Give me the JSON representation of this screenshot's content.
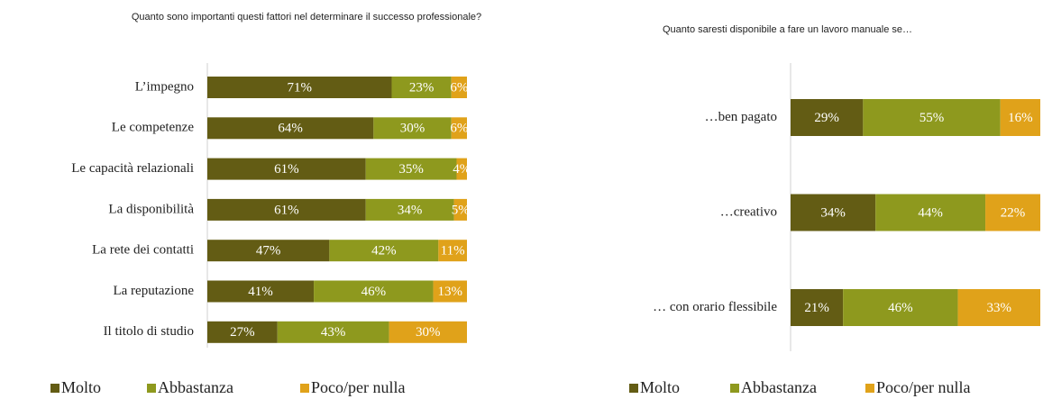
{
  "chart_data": [
    {
      "type": "bar",
      "orientation": "horizontal",
      "stacked": true,
      "title": "Quanto sono importanti questi fattori nel determinare il successo professionale?",
      "categories": [
        "L’impegno",
        "Le competenze",
        "Le capacità relazionali",
        "La disponibilità",
        "La rete dei contatti",
        "La reputazione",
        "Il titolo di studio"
      ],
      "xlim": [
        0,
        100
      ],
      "series": [
        {
          "name": "Molto",
          "color": "#635c14",
          "values": [
            71,
            64,
            61,
            61,
            47,
            41,
            27
          ],
          "value_labels": [
            "71%",
            "64%",
            "61%",
            "61%",
            "47%",
            "41%",
            "27%"
          ]
        },
        {
          "name": "Abbastanza",
          "color": "#8e991e",
          "values": [
            23,
            30,
            35,
            34,
            42,
            46,
            43
          ],
          "value_labels": [
            "23%",
            "30%",
            "35%",
            "34%",
            "42%",
            "46%",
            "43%"
          ]
        },
        {
          "name": "Poco/per nulla",
          "color": "#e0a21a",
          "values": [
            6,
            6,
            4,
            5,
            11,
            13,
            30
          ],
          "value_labels": [
            "6%",
            "6%",
            "4%",
            "5%",
            "11%",
            "13%",
            "30%"
          ]
        }
      ]
    },
    {
      "type": "bar",
      "orientation": "horizontal",
      "stacked": true,
      "title": "Quanto saresti disponibile a fare un lavoro manuale se…",
      "categories": [
        "…ben pagato",
        "…creativo",
        "… con orario flessibile"
      ],
      "xlim": [
        0,
        100
      ],
      "series": [
        {
          "name": "Molto",
          "color": "#635c14",
          "values": [
            29,
            34,
            21
          ],
          "value_labels": [
            "29%",
            "34%",
            "21%"
          ]
        },
        {
          "name": "Abbastanza",
          "color": "#8e991e",
          "values": [
            55,
            44,
            46
          ],
          "value_labels": [
            "55%",
            "44%",
            "46%"
          ]
        },
        {
          "name": "Poco/per nulla",
          "color": "#e0a21a",
          "values": [
            16,
            22,
            33
          ],
          "value_labels": [
            "16%",
            "22%",
            "33%"
          ]
        }
      ]
    }
  ]
}
